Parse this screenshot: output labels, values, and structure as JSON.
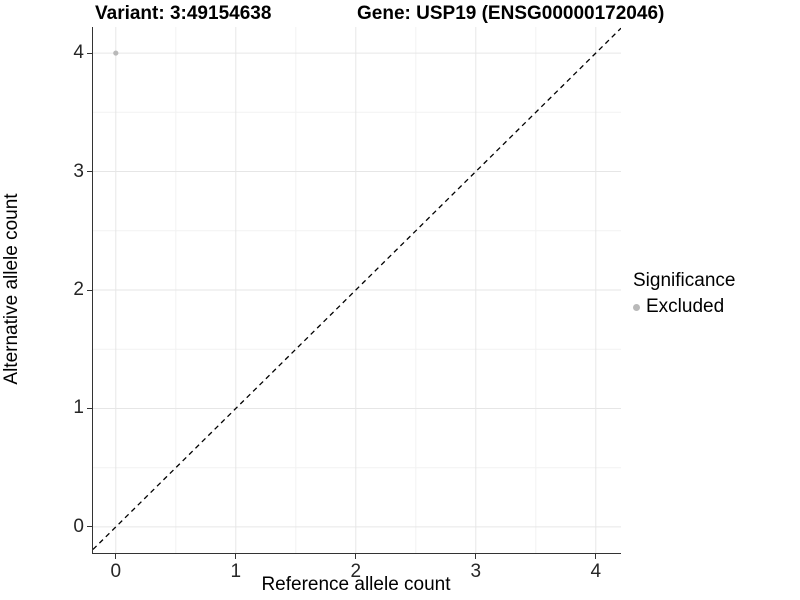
{
  "titles": {
    "variant": "Variant: 3:49154638",
    "gene": "Gene: USP19 (ENSG00000172046)"
  },
  "axes": {
    "x_label": "Reference allele count",
    "y_label": "Alternative allele count"
  },
  "legend": {
    "title": "Significance",
    "items": [
      {
        "label": "Excluded",
        "color": "#b9b9b9"
      }
    ]
  },
  "colors": {
    "background": "#ffffff",
    "axis_line": "#333333",
    "tick_label": "#262626",
    "grid_major": "#e6e6e6",
    "grid_minor": "#f2f2f2",
    "point_excluded": "#b9b9b9",
    "reference_line": "#000000"
  },
  "chart_data": {
    "type": "scatter",
    "title": "Variant: 3:49154638        Gene: USP19 (ENSG00000172046)",
    "xlabel": "Reference allele count",
    "ylabel": "Alternative allele count",
    "xlim": [
      -0.19,
      4.21
    ],
    "ylim": [
      -0.22,
      4.22
    ],
    "x_ticks": [
      0,
      1,
      2,
      3,
      4
    ],
    "y_ticks": [
      0,
      1,
      2,
      3,
      4
    ],
    "x_minor_ticks": [
      0.5,
      1.5,
      2.5,
      3.5
    ],
    "y_minor_ticks": [
      0.5,
      1.5,
      2.5,
      3.5
    ],
    "grid": true,
    "legend_position": "right",
    "legend_title": "Significance",
    "series": [
      {
        "name": "Excluded",
        "color": "#b9b9b9",
        "point_radius": 2.6,
        "points": [
          {
            "x": 0,
            "y": 4
          }
        ]
      }
    ],
    "reference_line": {
      "type": "identity",
      "slope": 1,
      "intercept": 0,
      "style": "dashed",
      "color": "#000000"
    }
  }
}
